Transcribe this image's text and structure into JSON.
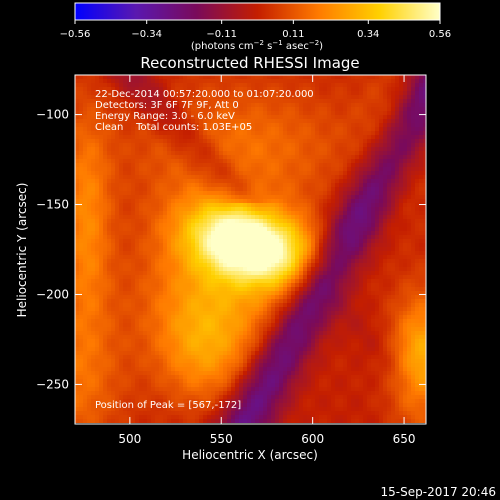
{
  "chart_data": {
    "type": "heatmap",
    "title": "Reconstructed RHESSI Image",
    "xlabel": "Heliocentric X (arcsec)",
    "ylabel": "Heliocentric Y (arcsec)",
    "xlim": [
      470,
      662
    ],
    "ylim": [
      -272,
      -78
    ],
    "x_ticks": [
      500,
      550,
      600,
      650
    ],
    "y_ticks": [
      -100,
      -150,
      -200,
      -250
    ],
    "colorbar": {
      "min": -0.56,
      "max": 0.56,
      "tick_values": [
        -0.56,
        -0.34,
        -0.11,
        0.11,
        0.34,
        0.56
      ],
      "tick_labels": [
        "−0.56",
        "−0.34",
        "−0.11",
        "0.11",
        "0.34",
        "0.56"
      ],
      "label_parts": [
        "(photons cm",
        "−2",
        " s",
        "−1",
        " asec",
        "−2",
        ")"
      ],
      "colormap": "blue-purple-red-orange-yellow-white",
      "colors": [
        "#0000ff",
        "#5a18b0",
        "#7a0a5a",
        "#c41e00",
        "#ff7a00",
        "#ffd000",
        "#ffffc8"
      ]
    },
    "annotations": [
      "22-Dec-2014 00:57:20.000 to 01:07:20.000",
      "Detectors: 3F 6F 7F 9F, Att 0",
      "Energy Range: 3.0 - 6.0 keV",
      "Clean    Total counts: 1.03E+05"
    ],
    "peak_label": "Position of Peak = [567,-172]",
    "peak": [
      567,
      -172
    ],
    "grid": false
  },
  "footer": {
    "timestamp": "15-Sep-2017 20:46"
  }
}
